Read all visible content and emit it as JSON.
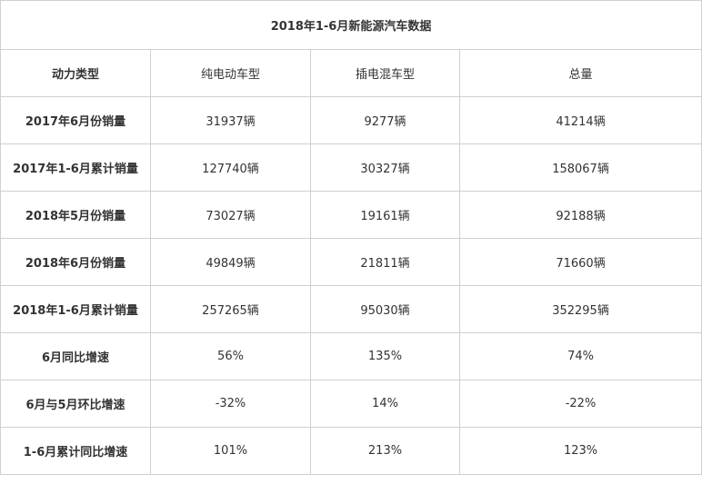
{
  "title": "2018年1-6月新能源汽车数据",
  "columns": [
    "动力类型",
    "纯电动车型",
    "插电混车型",
    "总量"
  ],
  "rows": [
    {
      "label": "2017年6月份销量",
      "values": [
        "31937辆",
        "9277辆",
        "41214辆"
      ]
    },
    {
      "label": "2017年1-6月累计销量",
      "values": [
        "127740辆",
        "30327辆",
        "158067辆"
      ]
    },
    {
      "label": "2018年5月份销量",
      "values": [
        "73027辆",
        "19161辆",
        "92188辆"
      ]
    },
    {
      "label": "2018年6月份销量",
      "values": [
        "49849辆",
        "21811辆",
        "71660辆"
      ]
    },
    {
      "label": "2018年1-6月累计销量",
      "values": [
        "257265辆",
        "95030辆",
        "352295辆"
      ]
    },
    {
      "label": "6月同比增速",
      "values": [
        "56%",
        "135%",
        "74%"
      ]
    },
    {
      "label": "6月与5月环比增速",
      "values": [
        "-32%",
        "14%",
        "-22%"
      ]
    },
    {
      "label": "1-6月累计同比增速",
      "values": [
        "101%",
        "213%",
        "123%"
      ]
    }
  ]
}
